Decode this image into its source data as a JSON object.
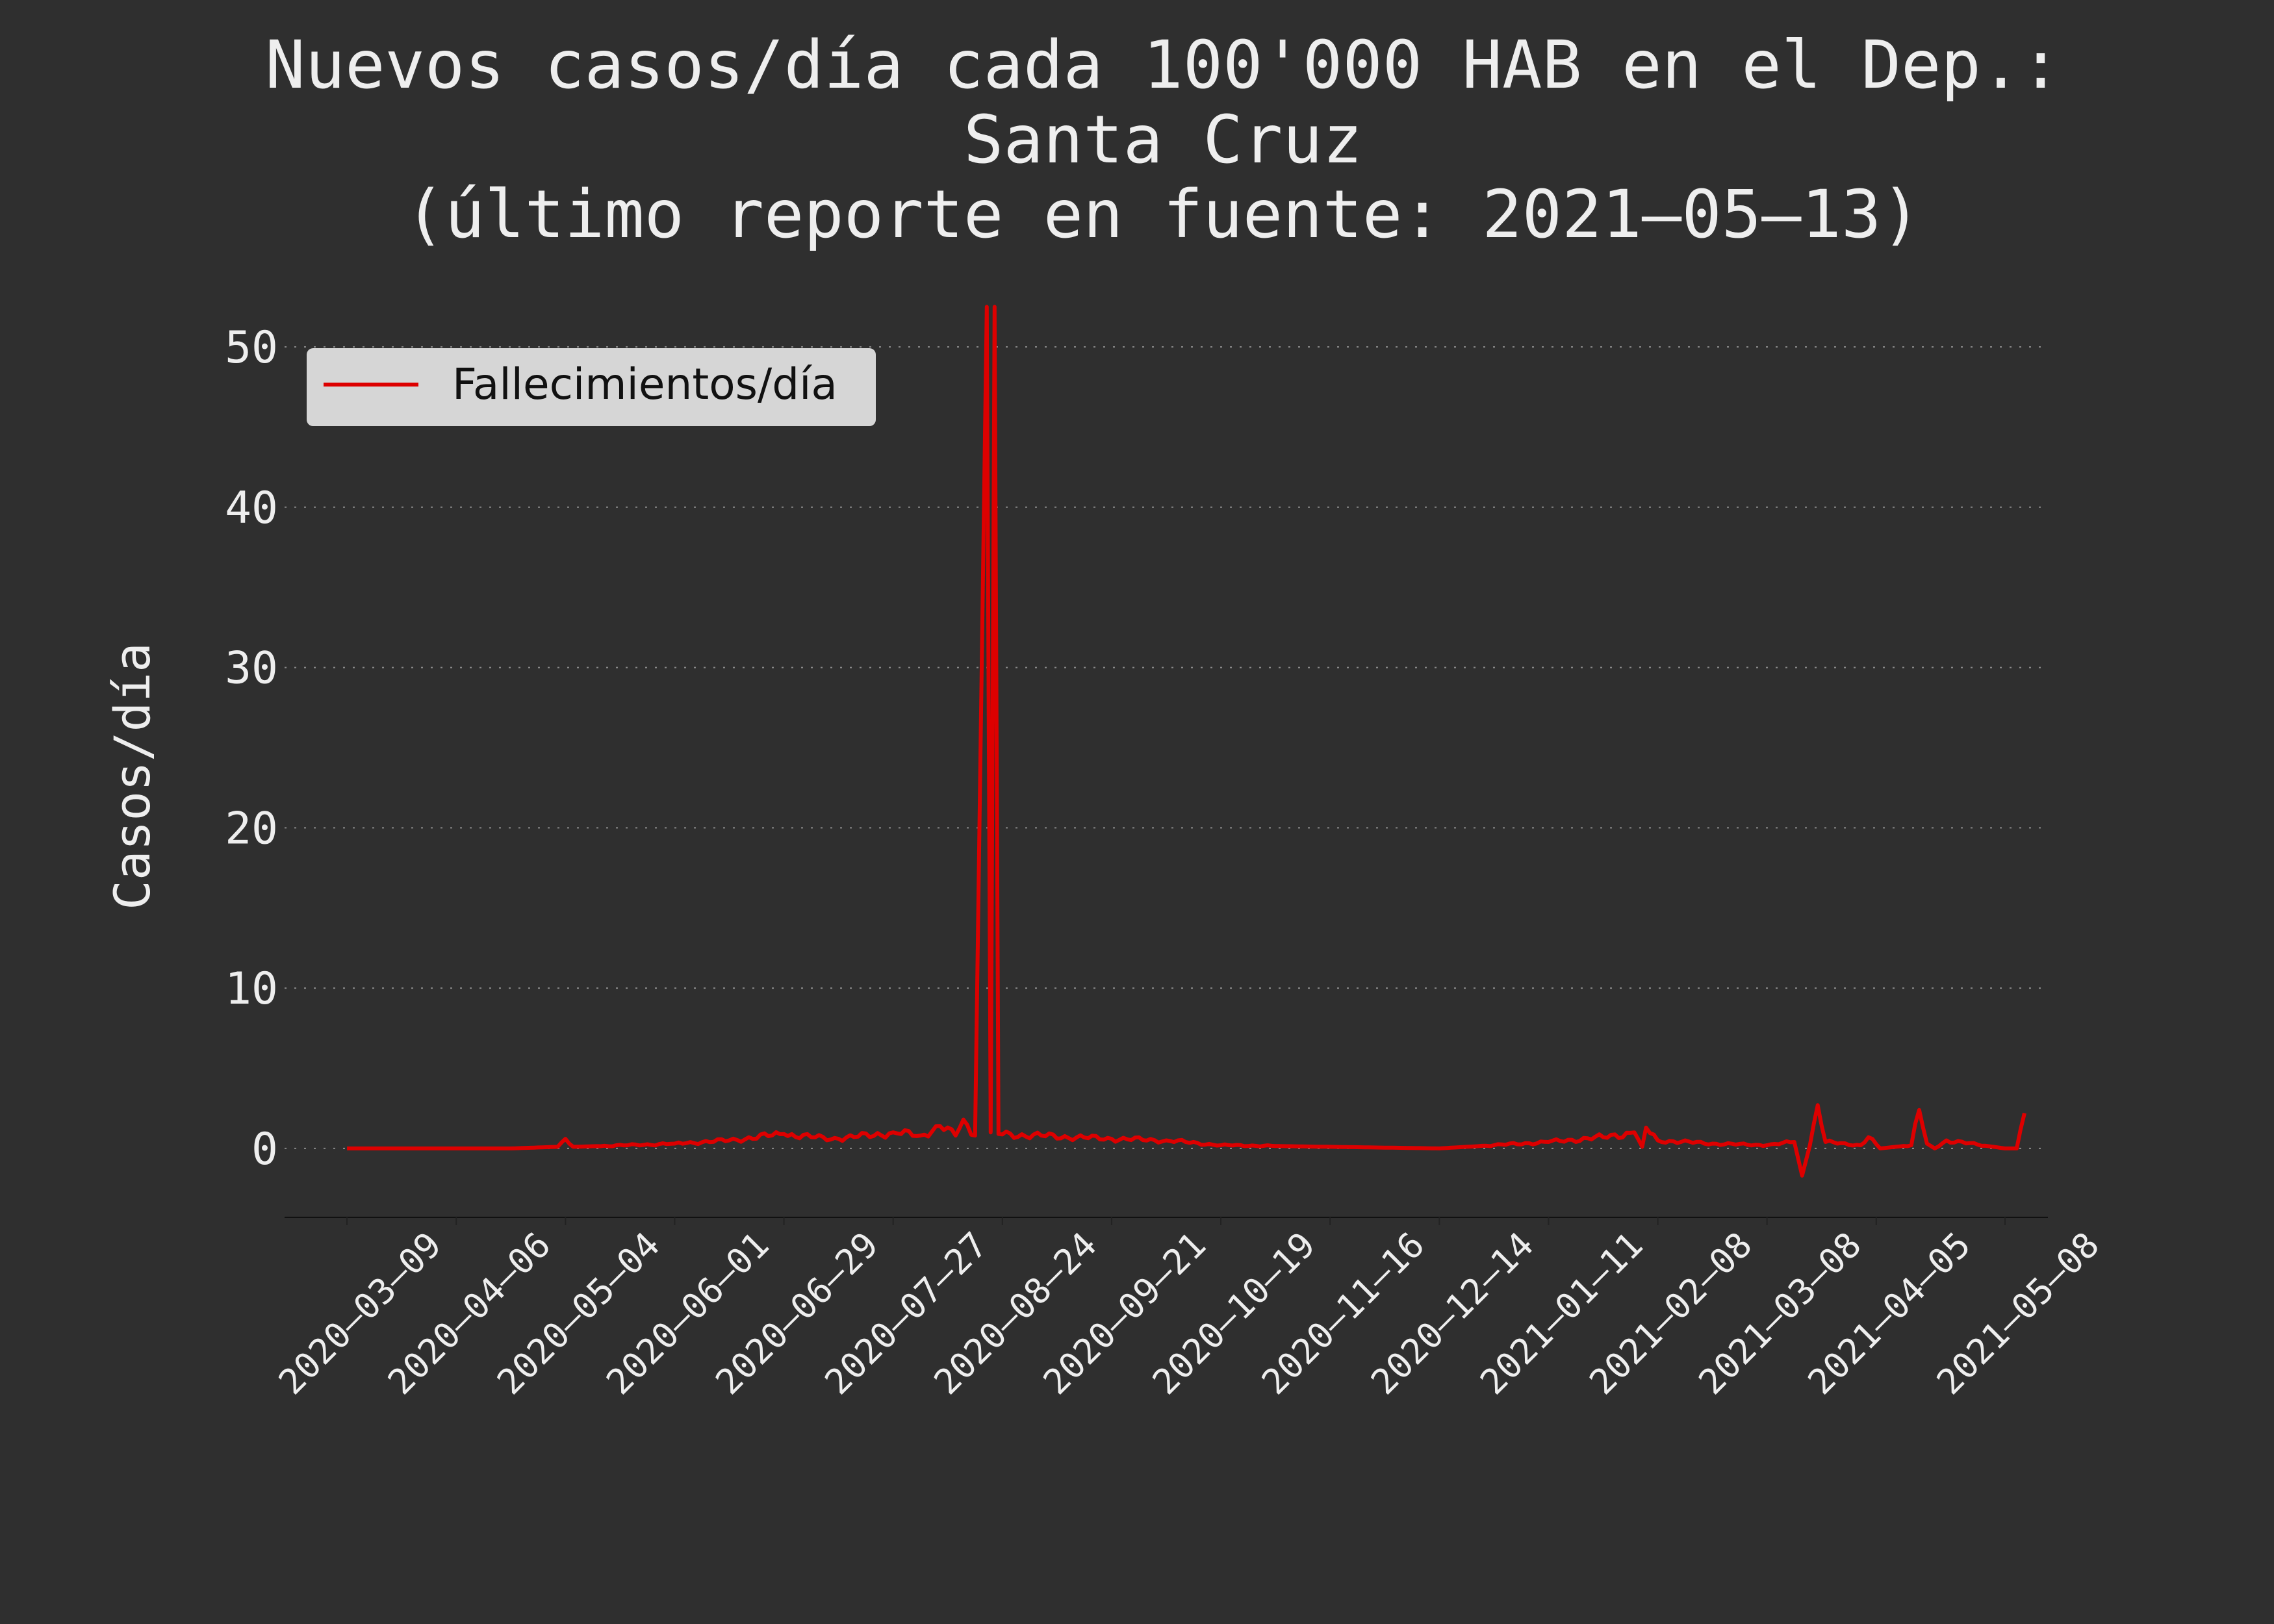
{
  "chart_data": {
    "type": "line",
    "title": [
      "Nuevos casos/día cada 100'000 HAB en el Dep.:",
      "Santa Cruz",
      "(último reporte en fuente: 2021–05–13)"
    ],
    "xlabel": "",
    "ylabel": "Casos/día",
    "x_start": "2020-03-09",
    "x_end": "2021-05-13",
    "xlim": [
      "2020-02-22",
      "2021-05-19"
    ],
    "xticks": [
      "2020–03–09",
      "2020–04–06",
      "2020–05–04",
      "2020–06–01",
      "2020–06–29",
      "2020–07–27",
      "2020–08–24",
      "2020–09–21",
      "2020–10–19",
      "2020–11–16",
      "2020–12–14",
      "2021–01–11",
      "2021–02–08",
      "2021–03–08",
      "2021–04–05",
      "2021–05–08"
    ],
    "ylim": [
      -4.3,
      53
    ],
    "yticks": [
      "0",
      "10",
      "20",
      "30",
      "40",
      "50"
    ],
    "grid": "horizontal dotted",
    "legend_position": "top-left",
    "colors": {
      "background": "#2f2f2f",
      "line": "#dd0000",
      "text": "#eeeeee",
      "legend_bg": "#d6d6d6"
    },
    "series": [
      {
        "name": "Fallecimientos/día",
        "anchors": [
          [
            "2020-03-09",
            0
          ],
          [
            "2020-04-20",
            0
          ],
          [
            "2020-05-02",
            0.1
          ],
          [
            "2020-05-04",
            0.6
          ],
          [
            "2020-05-06",
            0.1
          ],
          [
            "2020-05-20",
            0.2
          ],
          [
            "2020-06-01",
            0.3
          ],
          [
            "2020-06-15",
            0.5
          ],
          [
            "2020-06-29",
            0.9
          ],
          [
            "2020-07-06",
            0.7
          ],
          [
            "2020-07-13",
            0.6
          ],
          [
            "2020-07-27",
            1.0
          ],
          [
            "2020-08-03",
            0.8
          ],
          [
            "2020-08-08",
            1.4
          ],
          [
            "2020-08-12",
            0.8
          ],
          [
            "2020-08-14",
            1.8
          ],
          [
            "2020-08-17",
            0.8
          ],
          [
            "2020-08-20",
            52.5
          ],
          [
            "2020-08-21",
            1.0
          ],
          [
            "2020-08-22",
            52.5
          ],
          [
            "2020-08-23",
            0.9
          ],
          [
            "2020-09-21",
            0.6
          ],
          [
            "2020-10-05",
            0.5
          ],
          [
            "2020-10-19",
            0.2
          ],
          [
            "2020-11-16",
            0.1
          ],
          [
            "2020-12-14",
            0.0
          ],
          [
            "2020-12-28",
            0.2
          ],
          [
            "2021-01-11",
            0.4
          ],
          [
            "2021-01-25",
            0.7
          ],
          [
            "2021-02-02",
            1.0
          ],
          [
            "2021-02-04",
            0.1
          ],
          [
            "2021-02-05",
            1.3
          ],
          [
            "2021-02-08",
            0.5
          ],
          [
            "2021-02-22",
            0.3
          ],
          [
            "2021-03-08",
            0.2
          ],
          [
            "2021-03-15",
            0.4
          ],
          [
            "2021-03-17",
            -1.7
          ],
          [
            "2021-03-19",
            0.2
          ],
          [
            "2021-03-21",
            2.7
          ],
          [
            "2021-03-23",
            0.4
          ],
          [
            "2021-04-01",
            0.2
          ],
          [
            "2021-04-03",
            0.7
          ],
          [
            "2021-04-06",
            0.0
          ],
          [
            "2021-04-14",
            0.2
          ],
          [
            "2021-04-16",
            2.4
          ],
          [
            "2021-04-18",
            0.3
          ],
          [
            "2021-04-20",
            0.0
          ],
          [
            "2021-04-23",
            0.5
          ],
          [
            "2021-05-08",
            0.0
          ],
          [
            "2021-05-11",
            0.0
          ],
          [
            "2021-05-13",
            2.2
          ]
        ]
      }
    ]
  }
}
